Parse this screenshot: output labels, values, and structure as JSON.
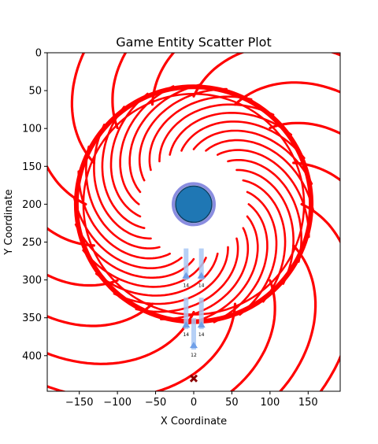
{
  "chart_data": {
    "type": "scatter",
    "title": "Game Entity Scatter Plot",
    "xlabel": "X Coordinate",
    "ylabel": "Y Coordinate",
    "xlim": [
      -192,
      192
    ],
    "ylim": [
      447,
      0
    ],
    "y_inverted": true,
    "grid": false,
    "x_ticks": [
      -150,
      -100,
      -50,
      0,
      50,
      100,
      150
    ],
    "x_tick_labels": [
      "−150",
      "−100",
      "−50",
      "0",
      "50",
      "100",
      "150"
    ],
    "y_ticks": [
      0,
      50,
      100,
      150,
      200,
      250,
      300,
      350,
      400
    ],
    "y_tick_labels": [
      "0",
      "50",
      "100",
      "150",
      "200",
      "250",
      "300",
      "350",
      "400"
    ],
    "colors": {
      "spiral": "#ff0000",
      "player": "#1f77b4",
      "player_ring": "#8a8de0",
      "shooter": "#a9c8f5",
      "marker": "#8b0000",
      "background": "#ffffff"
    },
    "player": {
      "x": 0,
      "y": 200
    },
    "center_clearing": {
      "x": 0,
      "y": 200,
      "radius": 68
    },
    "spiral_ring": {
      "x": 0,
      "y": 200,
      "inner_radius": 72,
      "outer_radius": 157
    },
    "outer_curls": {
      "count": 16
    },
    "inner_curls": {
      "count": 28
    },
    "shooters": [
      {
        "x": -10,
        "y": 300,
        "label": "14"
      },
      {
        "x": 10,
        "y": 300,
        "label": "14"
      },
      {
        "x": -10,
        "y": 365,
        "label": "14"
      },
      {
        "x": 10,
        "y": 365,
        "label": "14"
      },
      {
        "x": 0,
        "y": 392,
        "label": "12"
      }
    ],
    "marker": {
      "x": 0,
      "y": 430
    }
  }
}
